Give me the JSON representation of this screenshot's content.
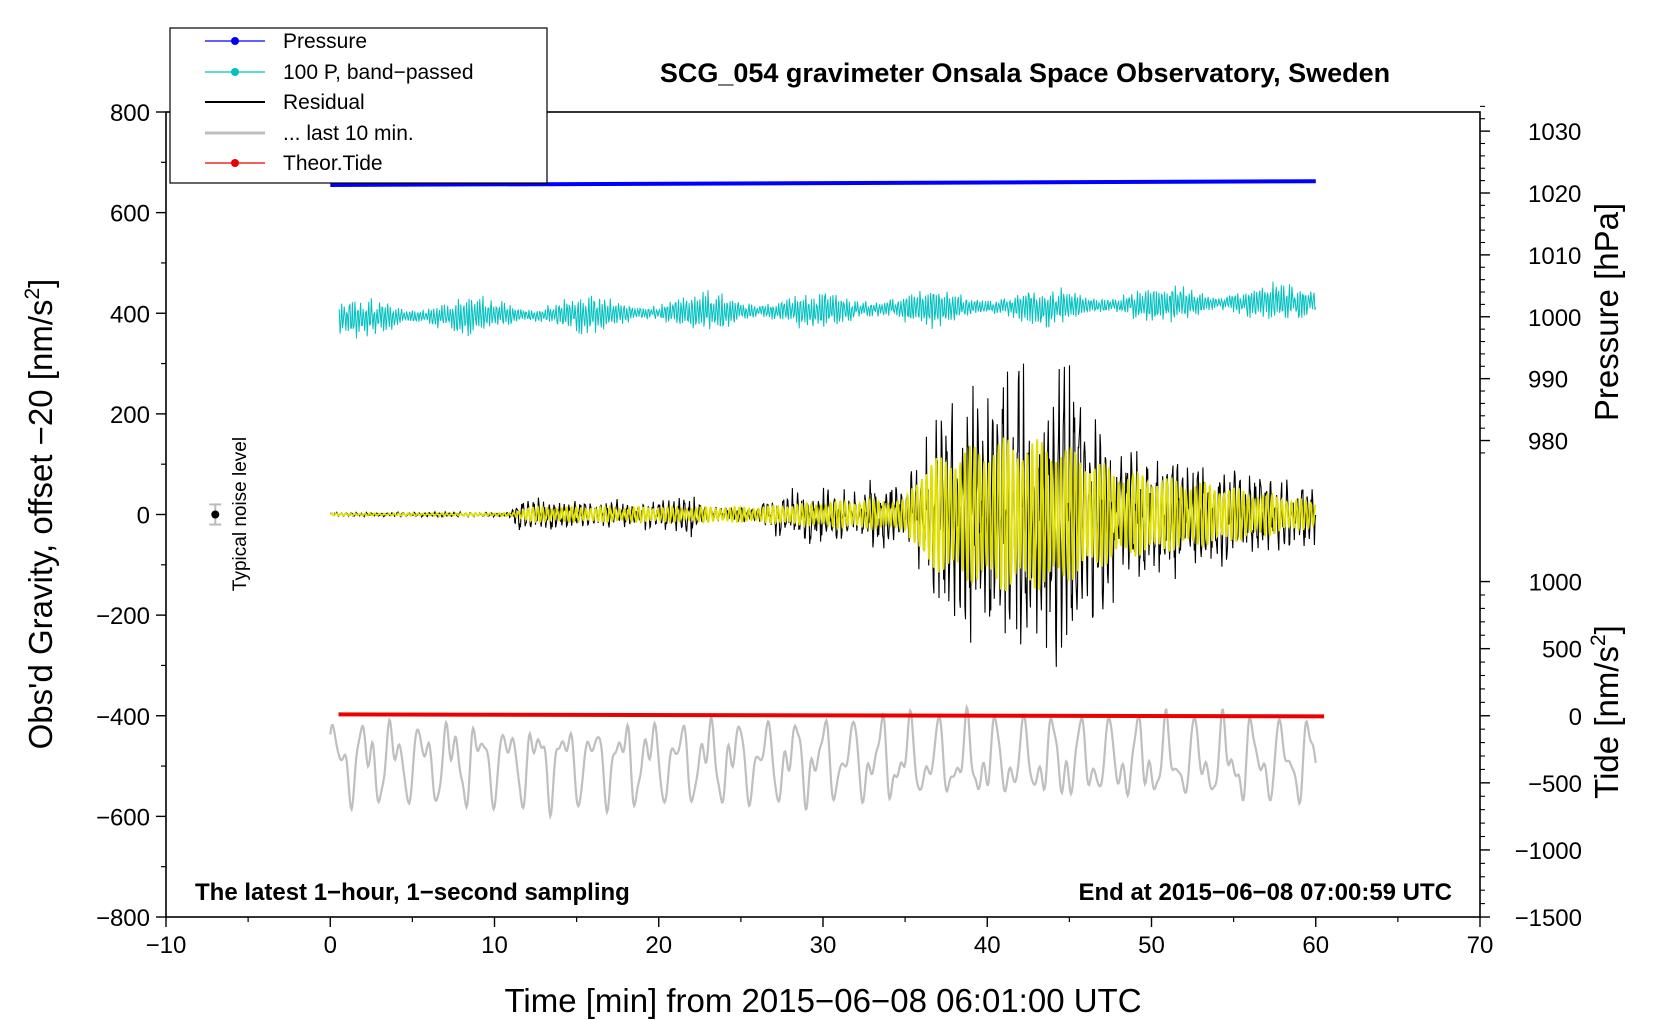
{
  "chart_data": {
    "type": "line",
    "title": "SCG_054 gravimeter Onsala Space Observatory, Sweden",
    "xlabel": "Time [min] from 2015−06−08 06:01:00 UTC",
    "ylabel": "Obs'd Gravity, offset −20 [nm/s",
    "ylabel_sup": "2",
    "ylabel_close": "]",
    "y2label_pressure": "Pressure [hPa]",
    "y2label_tide": "Tide [nm/s",
    "y2label_tide_sup": "2",
    "y2label_tide_close": "]",
    "xlim": [
      -10,
      70
    ],
    "ylim": [
      -800,
      800
    ],
    "x_ticks": [
      -10,
      0,
      10,
      20,
      30,
      40,
      50,
      60,
      70
    ],
    "x_tick_labels": [
      "−10",
      "0",
      "10",
      "20",
      "30",
      "40",
      "50",
      "60",
      "70"
    ],
    "y_ticks": [
      800,
      600,
      400,
      200,
      0,
      -200,
      -400,
      -600,
      -800
    ],
    "y_tick_labels": [
      "800",
      "600",
      "400",
      "200",
      "0",
      "−200",
      "−400",
      "−600",
      "−800"
    ],
    "pressure_axis": {
      "ticks": [
        1030,
        1020,
        1010,
        1000,
        990,
        980
      ],
      "tick_labels": [
        "1030",
        "1020",
        "1010",
        "1000",
        "990",
        "980"
      ],
      "gravity_at_1000": 393.0,
      "gravity_per_hpa": 12.3
    },
    "tide_axis": {
      "ticks": [
        1000,
        500,
        0,
        -500,
        -1000,
        -1500
      ],
      "tick_labels": [
        "1000",
        "500",
        "0",
        "−500",
        "−1000",
        "−1500"
      ],
      "gravity_at_0": -400,
      "gravity_per_unit": 0.2667
    },
    "series": [
      {
        "name": "Pressure",
        "color": "#0000ff",
        "style": "line-dot",
        "pressure_hpa_start": 1021.3,
        "pressure_hpa_end": 1021.9,
        "x_range": [
          0,
          60
        ]
      },
      {
        "name": "100 P, band−passed",
        "color": "#00c0c0",
        "style": "line-dot",
        "baseline_gravity": 390,
        "baseline_trend": 0.55,
        "typical_amplitude": 30,
        "x_range": [
          0.5,
          60
        ]
      },
      {
        "name": "Residual",
        "color": "#000000",
        "style": "line",
        "x_range": [
          0,
          60
        ],
        "envelope": [
          [
            0,
            4
          ],
          [
            11,
            5
          ],
          [
            11.5,
            40
          ],
          [
            12,
            30
          ],
          [
            16,
            25
          ],
          [
            20,
            25
          ],
          [
            22,
            45
          ],
          [
            23,
            15
          ],
          [
            26,
            15
          ],
          [
            26.5,
            40
          ],
          [
            33,
            60
          ],
          [
            35,
            55
          ],
          [
            36,
            140
          ],
          [
            38,
            200
          ],
          [
            41,
            270
          ],
          [
            43,
            285
          ],
          [
            45,
            280
          ],
          [
            47,
            170
          ],
          [
            50,
            120
          ],
          [
            55,
            80
          ],
          [
            60,
            60
          ]
        ],
        "min": -310,
        "max": 300
      },
      {
        "name": "... last 10 min.",
        "color": "#bfbfbf",
        "style": "line",
        "baseline_gravity": -490,
        "amplitude_range": [
          -630,
          -355
        ],
        "x_range": [
          0,
          60
        ]
      },
      {
        "name": "Theor.Tide",
        "color": "#ee0000",
        "style": "line-dot",
        "tide_nms2_start": 10,
        "tide_nms2_end": -5,
        "x_range": [
          0.5,
          60.5
        ]
      },
      {
        "name": "Filtered residual",
        "color": "#e0e000",
        "style": "line",
        "in_legend": false,
        "x_range": [
          0,
          60
        ],
        "envelope": [
          [
            0,
            2
          ],
          [
            11,
            3
          ],
          [
            12,
            15
          ],
          [
            20,
            15
          ],
          [
            26,
            15
          ],
          [
            30,
            25
          ],
          [
            33,
            30
          ],
          [
            35,
            30
          ],
          [
            36,
            100
          ],
          [
            38,
            130
          ],
          [
            41,
            155
          ],
          [
            44,
            150
          ],
          [
            46,
            120
          ],
          [
            48,
            90
          ],
          [
            55,
            55
          ],
          [
            60,
            25
          ]
        ]
      }
    ],
    "noise_marker": {
      "label": "Typical noise level",
      "x": -7,
      "y": 0,
      "err": 20
    },
    "legend_position": "top-left",
    "footer_left": "The latest 1−hour, 1−second sampling",
    "footer_right": "End at 2015−06−08 07:00:59 UTC"
  }
}
